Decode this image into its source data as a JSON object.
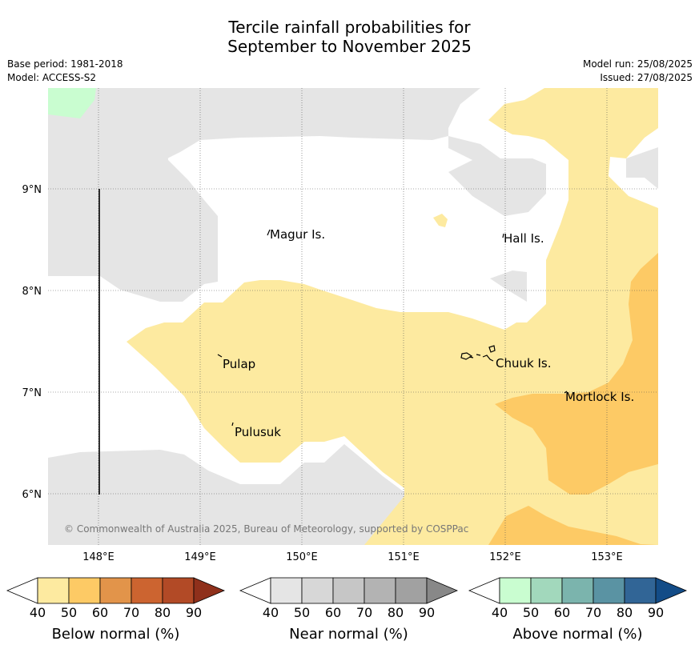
{
  "title_line1": "Tercile rainfall probabilities for",
  "title_line2": "September to November 2025",
  "meta_left": [
    "Base period: 1981-2018",
    "Model: ACCESS-S2"
  ],
  "meta_right": [
    "Model run: 25/08/2025",
    "Issued: 27/08/2025"
  ],
  "copyright": "© Commonwealth of Australia 2025, Bureau of Meteorology, supported by COSPPac",
  "lat_labels": [
    "9°N",
    "8°N",
    "7°N",
    "6°N"
  ],
  "lon_labels": [
    "148°E",
    "149°E",
    "150°E",
    "151°E",
    "152°E",
    "153°E"
  ],
  "places": [
    {
      "name": "Magur Is."
    },
    {
      "name": "Hall Is."
    },
    {
      "name": "Pulap"
    },
    {
      "name": "Chuuk Is."
    },
    {
      "name": "Mortlock Is."
    },
    {
      "name": "Pulusuk"
    }
  ],
  "legends": [
    {
      "title": "Below normal (%)",
      "ticks": [
        "40",
        "50",
        "60",
        "70",
        "80",
        "90"
      ],
      "colors": [
        "#fdeaa0",
        "#fdca65",
        "#e2944a",
        "#cc6430",
        "#b24a26",
        "#8f301b"
      ]
    },
    {
      "title": "Near normal (%)",
      "ticks": [
        "40",
        "50",
        "60",
        "70",
        "80",
        "90"
      ],
      "colors": [
        "#e5e5e5",
        "#d7d7d7",
        "#c6c6c6",
        "#b3b3b3",
        "#a1a1a1",
        "#888888"
      ]
    },
    {
      "title": "Above normal (%)",
      "ticks": [
        "40",
        "50",
        "60",
        "70",
        "80",
        "90"
      ],
      "colors": [
        "#c9fdd0",
        "#a2d8bc",
        "#7bb4ad",
        "#5a93a3",
        "#316596",
        "#134c87"
      ]
    }
  ]
}
